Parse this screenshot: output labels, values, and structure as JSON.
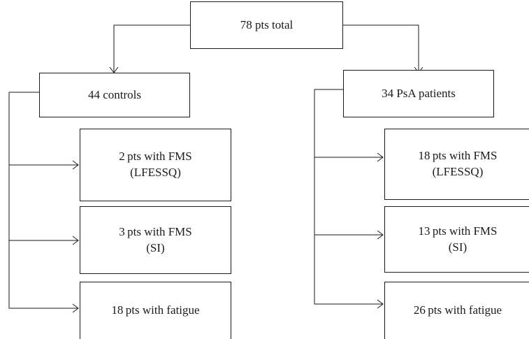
{
  "root": {
    "label": "78 pts total"
  },
  "controls": {
    "label": "44 controls",
    "children": [
      {
        "line1": "2 pts with FMS",
        "line2": "(LFESSQ)"
      },
      {
        "line1": "3 pts with FMS",
        "line2": "(SI)"
      },
      {
        "line1": "18 pts with fatigue",
        "line2": ""
      }
    ]
  },
  "psa": {
    "label": "34 PsA patients",
    "children": [
      {
        "line1": "18 pts with FMS",
        "line2": "(LFESSQ)"
      },
      {
        "line1": "13 pts with FMS",
        "line2": "(SI)"
      },
      {
        "line1": "26 pts with fatigue",
        "line2": ""
      }
    ]
  }
}
